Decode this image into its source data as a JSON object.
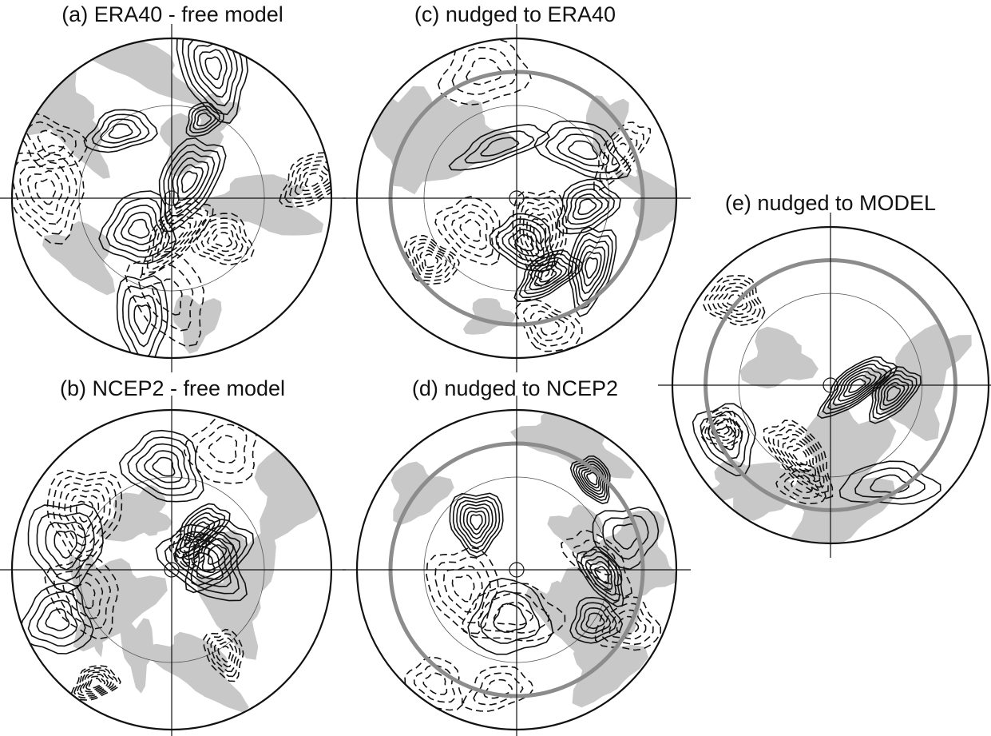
{
  "panels": [
    {
      "title": "(a) ERA40 - free model"
    },
    {
      "title": "(b) NCEP2 - free model"
    },
    {
      "title": "(c) nudged to ERA40"
    },
    {
      "title": "(d) nudged to NCEP2"
    },
    {
      "title": "(e) nudged to MODEL"
    }
  ]
}
